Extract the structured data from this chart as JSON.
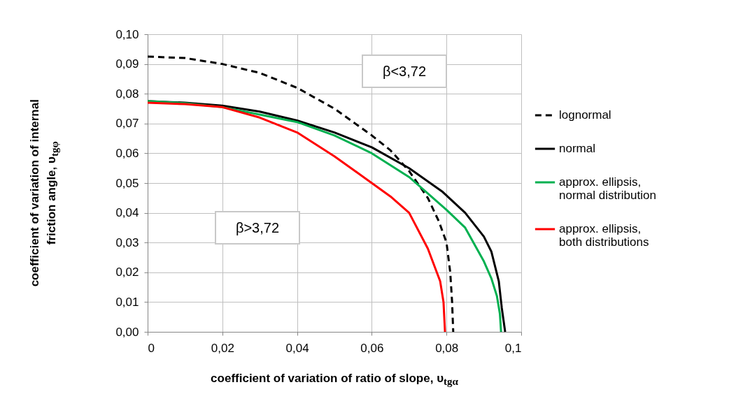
{
  "chart_data": {
    "type": "line",
    "xlabel": "coefficient of variation of  ratio of slope, υ$_{tgα}$",
    "ylabel": "coefficient of variation of internal friction angle, υ$_{tgφ}$",
    "xlim": [
      0,
      0.1
    ],
    "ylim": [
      0,
      0.1
    ],
    "xticks": [
      0,
      {
        "value": 0.02,
        "label": "0,02"
      },
      {
        "value": 0.04,
        "label": "0,04"
      },
      {
        "value": 0.06,
        "label": "0,06"
      },
      {
        "value": 0.08,
        "label": "0,08"
      },
      {
        "value": 0.1,
        "label": "0,1"
      }
    ],
    "yticks": [
      {
        "value": 0,
        "label": "0,00"
      },
      {
        "value": 0.01,
        "label": "0,01"
      },
      {
        "value": 0.02,
        "label": "0,02"
      },
      {
        "value": 0.03,
        "label": "0,03"
      },
      {
        "value": 0.04,
        "label": "0,04"
      },
      {
        "value": 0.05,
        "label": "0,05"
      },
      {
        "value": 0.06,
        "label": "0,06"
      },
      {
        "value": 0.07,
        "label": "0,07"
      },
      {
        "value": 0.08,
        "label": "0,08"
      },
      {
        "value": 0.09,
        "label": "0,09"
      },
      {
        "value": 0.1,
        "label": "0,10"
      }
    ],
    "grid": true,
    "legend": "right",
    "marker": "none",
    "series": [
      {
        "name": "lognormal",
        "color": "#000000",
        "line_style": "dashed",
        "x": [
          0,
          0.01,
          0.02,
          0.03,
          0.04,
          0.05,
          0.06,
          0.065,
          0.07,
          0.075,
          0.078,
          0.08,
          0.081,
          0.0815,
          0.0818
        ],
        "values": [
          0.0925,
          0.092,
          0.09,
          0.087,
          0.082,
          0.075,
          0.066,
          0.061,
          0.054,
          0.045,
          0.037,
          0.03,
          0.02,
          0.01,
          0
        ]
      },
      {
        "name": "normal",
        "color": "#000000",
        "line_style": "solid",
        "x": [
          0,
          0.01,
          0.02,
          0.03,
          0.04,
          0.05,
          0.06,
          0.07,
          0.079,
          0.085,
          0.09,
          0.092,
          0.094,
          0.0948,
          0.0957
        ],
        "values": [
          0.0775,
          0.077,
          0.076,
          0.074,
          0.071,
          0.067,
          0.062,
          0.055,
          0.047,
          0.04,
          0.032,
          0.027,
          0.017,
          0.008,
          0
        ]
      },
      {
        "name": "approx. ellipsis, normal distribution",
        "color": "#00b050",
        "line_style": "solid",
        "x": [
          0,
          0.01,
          0.02,
          0.03,
          0.04,
          0.05,
          0.06,
          0.07,
          0.08,
          0.085,
          0.09,
          0.092,
          0.0935,
          0.0943,
          0.0946
        ],
        "values": [
          0.0775,
          0.0768,
          0.0755,
          0.073,
          0.0705,
          0.066,
          0.06,
          0.052,
          0.041,
          0.035,
          0.0237,
          0.018,
          0.012,
          0.006,
          0
        ]
      },
      {
        "name": "approx. ellipsis, both distributions",
        "color": "#ff0000",
        "line_style": "solid",
        "x": [
          0,
          0.01,
          0.02,
          0.03,
          0.04,
          0.05,
          0.06,
          0.065,
          0.07,
          0.075,
          0.0783,
          0.0792,
          0.0796
        ],
        "values": [
          0.077,
          0.0765,
          0.0755,
          0.072,
          0.067,
          0.059,
          0.05,
          0.0455,
          0.04,
          0.028,
          0.017,
          0.01,
          0
        ]
      }
    ],
    "annotations": [
      "β<3,72",
      "β>3,72"
    ]
  }
}
